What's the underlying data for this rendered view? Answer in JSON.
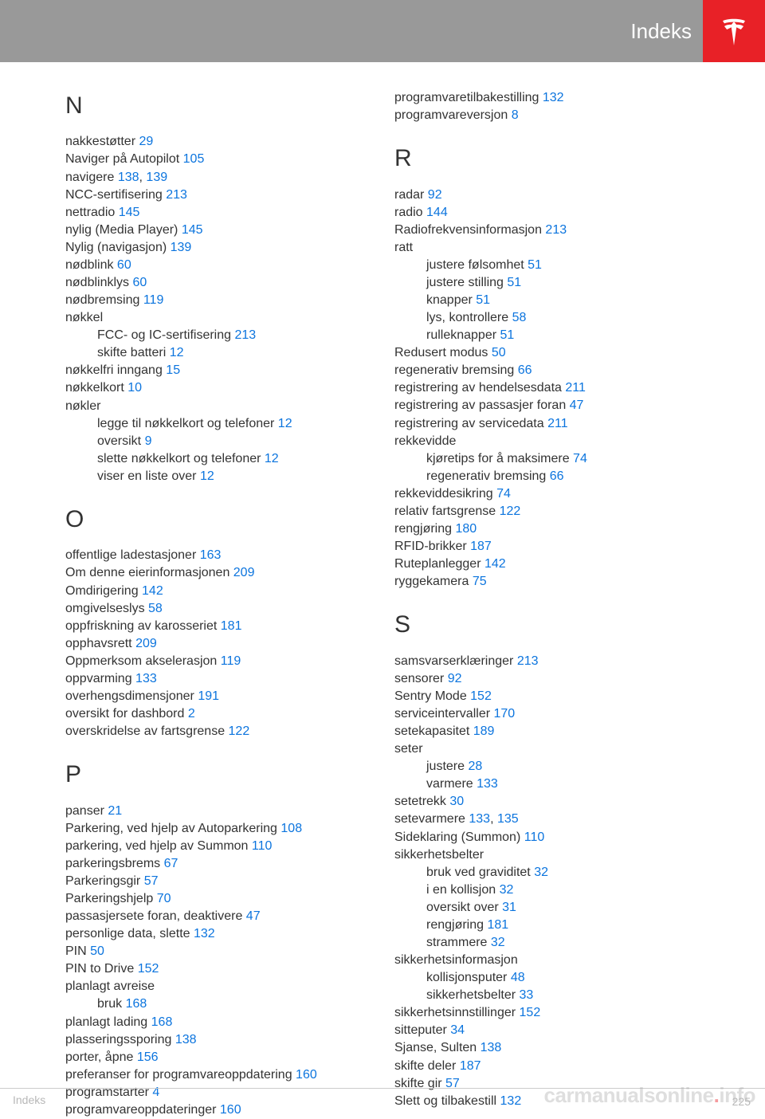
{
  "header": {
    "title": "Indeks"
  },
  "footer": {
    "left": "Indeks",
    "page": "225"
  },
  "watermark": {
    "a": "carmanualsonline",
    "b": ".",
    "c": "info"
  },
  "left": {
    "N": {
      "letter": "N",
      "items": [
        {
          "t": "nakkestøtter ",
          "p": "29"
        },
        {
          "t": "Naviger på Autopilot ",
          "p": "105"
        },
        {
          "t": "navigere ",
          "p": "138",
          "sep": ", ",
          "p2": "139"
        },
        {
          "t": "NCC-sertifisering ",
          "p": "213"
        },
        {
          "t": "nettradio ",
          "p": "145"
        },
        {
          "t": "nylig (Media Player) ",
          "p": "145"
        },
        {
          "t": "Nylig (navigasjon) ",
          "p": "139"
        },
        {
          "t": "nødblink ",
          "p": "60"
        },
        {
          "t": "nødblinklys ",
          "p": "60"
        },
        {
          "t": "nødbremsing ",
          "p": "119"
        },
        {
          "t": "nøkkel"
        },
        {
          "t": "FCC- og IC-sertifisering ",
          "p": "213",
          "sub": true
        },
        {
          "t": "skifte batteri ",
          "p": "12",
          "sub": true
        },
        {
          "t": "nøkkelfri inngang ",
          "p": "15"
        },
        {
          "t": "nøkkelkort ",
          "p": "10"
        },
        {
          "t": "nøkler"
        },
        {
          "t": "legge til nøkkelkort og telefoner ",
          "p": "12",
          "sub": true
        },
        {
          "t": "oversikt ",
          "p": "9",
          "sub": true
        },
        {
          "t": "slette nøkkelkort og telefoner ",
          "p": "12",
          "sub": true
        },
        {
          "t": "viser en liste over ",
          "p": "12",
          "sub": true
        }
      ]
    },
    "O": {
      "letter": "O",
      "items": [
        {
          "t": "offentlige ladestasjoner ",
          "p": "163"
        },
        {
          "t": "Om denne eierinformasjonen ",
          "p": "209"
        },
        {
          "t": "Omdirigering ",
          "p": "142"
        },
        {
          "t": "omgivelseslys ",
          "p": "58"
        },
        {
          "t": "oppfriskning av karosseriet ",
          "p": "181"
        },
        {
          "t": "opphavsrett ",
          "p": "209"
        },
        {
          "t": "Oppmerksom akselerasjon ",
          "p": "119"
        },
        {
          "t": "oppvarming ",
          "p": "133"
        },
        {
          "t": "overhengsdimensjoner ",
          "p": "191"
        },
        {
          "t": "oversikt for dashbord ",
          "p": "2"
        },
        {
          "t": "overskridelse av fartsgrense ",
          "p": "122"
        }
      ]
    },
    "P": {
      "letter": "P",
      "items": [
        {
          "t": "panser ",
          "p": "21"
        },
        {
          "t": "Parkering, ved hjelp av Autoparkering ",
          "p": "108"
        },
        {
          "t": "parkering, ved hjelp av Summon ",
          "p": "110"
        },
        {
          "t": "parkeringsbrems ",
          "p": "67"
        },
        {
          "t": "Parkeringsgir ",
          "p": "57"
        },
        {
          "t": "Parkeringshjelp ",
          "p": "70"
        },
        {
          "t": "passasjersete foran, deaktivere ",
          "p": "47"
        },
        {
          "t": "personlige data, slette ",
          "p": "132"
        },
        {
          "t": "PIN ",
          "p": "50"
        },
        {
          "t": "PIN to Drive ",
          "p": "152"
        },
        {
          "t": "planlagt avreise"
        },
        {
          "t": "bruk ",
          "p": "168",
          "sub": true
        },
        {
          "t": "planlagt lading ",
          "p": "168"
        },
        {
          "t": "plasseringssporing ",
          "p": "138"
        },
        {
          "t": "porter, åpne ",
          "p": "156"
        },
        {
          "t": "preferanser for programvareoppdatering ",
          "p": "160"
        },
        {
          "t": "programstarter ",
          "p": "4"
        },
        {
          "t": "programvareoppdateringer ",
          "p": "160"
        }
      ]
    }
  },
  "right": {
    "Ptail": {
      "items": [
        {
          "t": "programvaretilbakestilling ",
          "p": "132"
        },
        {
          "t": "programvareversjon ",
          "p": "8"
        }
      ]
    },
    "R": {
      "letter": "R",
      "items": [
        {
          "t": "radar ",
          "p": "92"
        },
        {
          "t": "radio ",
          "p": "144"
        },
        {
          "t": "Radiofrekvensinformasjon ",
          "p": "213"
        },
        {
          "t": "ratt"
        },
        {
          "t": "justere følsomhet ",
          "p": "51",
          "sub": true
        },
        {
          "t": "justere stilling ",
          "p": "51",
          "sub": true
        },
        {
          "t": "knapper ",
          "p": "51",
          "sub": true
        },
        {
          "t": "lys, kontrollere ",
          "p": "58",
          "sub": true
        },
        {
          "t": "rulleknapper ",
          "p": "51",
          "sub": true
        },
        {
          "t": "Redusert modus ",
          "p": "50"
        },
        {
          "t": "regenerativ bremsing ",
          "p": "66"
        },
        {
          "t": "registrering av hendelsesdata ",
          "p": "211"
        },
        {
          "t": "registrering av passasjer foran ",
          "p": "47"
        },
        {
          "t": "registrering av servicedata ",
          "p": "211"
        },
        {
          "t": "rekkevidde"
        },
        {
          "t": "kjøretips for å maksimere ",
          "p": "74",
          "sub": true
        },
        {
          "t": "regenerativ bremsing ",
          "p": "66",
          "sub": true
        },
        {
          "t": "rekkeviddesikring ",
          "p": "74"
        },
        {
          "t": "relativ fartsgrense ",
          "p": "122"
        },
        {
          "t": "rengjøring ",
          "p": "180"
        },
        {
          "t": "RFID-brikker ",
          "p": "187"
        },
        {
          "t": "Ruteplanlegger ",
          "p": "142"
        },
        {
          "t": "ryggekamera ",
          "p": "75"
        }
      ]
    },
    "S": {
      "letter": "S",
      "items": [
        {
          "t": "samsvarserklæringer ",
          "p": "213"
        },
        {
          "t": "sensorer ",
          "p": "92"
        },
        {
          "t": "Sentry Mode ",
          "p": "152"
        },
        {
          "t": "serviceintervaller ",
          "p": "170"
        },
        {
          "t": "setekapasitet ",
          "p": "189"
        },
        {
          "t": "seter"
        },
        {
          "t": "justere ",
          "p": "28",
          "sub": true
        },
        {
          "t": "varmere ",
          "p": "133",
          "sub": true
        },
        {
          "t": "setetrekk ",
          "p": "30"
        },
        {
          "t": "setevarmere ",
          "p": "133",
          "sep": ", ",
          "p2": "135"
        },
        {
          "t": "Sideklaring (Summon) ",
          "p": "110"
        },
        {
          "t": "sikkerhetsbelter"
        },
        {
          "t": "bruk ved graviditet ",
          "p": "32",
          "sub": true
        },
        {
          "t": "i en kollisjon ",
          "p": "32",
          "sub": true
        },
        {
          "t": "oversikt over ",
          "p": "31",
          "sub": true
        },
        {
          "t": "rengjøring ",
          "p": "181",
          "sub": true
        },
        {
          "t": "strammere ",
          "p": "32",
          "sub": true
        },
        {
          "t": "sikkerhetsinformasjon"
        },
        {
          "t": "kollisjonsputer ",
          "p": "48",
          "sub": true
        },
        {
          "t": "sikkerhetsbelter ",
          "p": "33",
          "sub": true
        },
        {
          "t": "sikkerhetsinnstillinger ",
          "p": "152"
        },
        {
          "t": "sitteputer ",
          "p": "34"
        },
        {
          "t": "Sjanse, Sulten ",
          "p": "138"
        },
        {
          "t": "skifte deler ",
          "p": "187"
        },
        {
          "t": "skifte gir ",
          "p": "57"
        },
        {
          "t": "Slett og tilbakestill ",
          "p": "132"
        }
      ]
    }
  }
}
